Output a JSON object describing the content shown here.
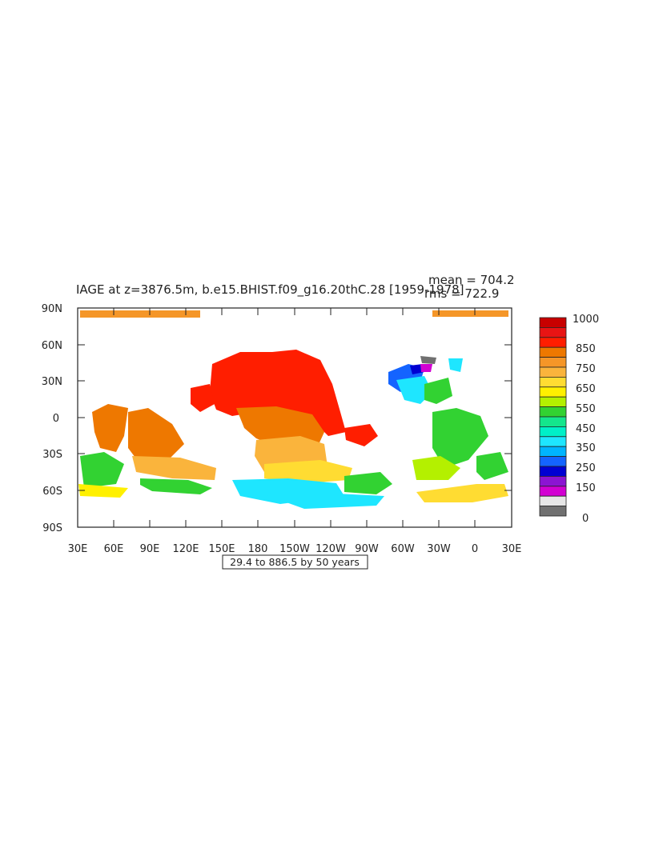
{
  "title": "IAGE at z=3876.5m, b.e15.BHIST.f09_g16.20thC.28  [1959-1978]",
  "stats": {
    "mean": "mean = 704.2",
    "rms": "rms = 722.9"
  },
  "contour_info": "29.4 to 886.5 by 50 years",
  "y_ticks": [
    "90N",
    "60N",
    "30N",
    "0",
    "30S",
    "60S",
    "90S"
  ],
  "x_ticks": [
    "30E",
    "60E",
    "90E",
    "120E",
    "150E",
    "180",
    "150W",
    "120W",
    "90W",
    "60W",
    "30W",
    "0",
    "30E"
  ],
  "colorbar": {
    "labels": [
      "1000",
      "850",
      "750",
      "650",
      "550",
      "450",
      "350",
      "250",
      "150",
      "0"
    ],
    "colors": [
      "#c80000",
      "#e81414",
      "#ff1e00",
      "#ee7800",
      "#f59628",
      "#fab43c",
      "#ffdc32",
      "#fff000",
      "#b4f000",
      "#32d232",
      "#14e68c",
      "#00f0c8",
      "#1ee6ff",
      "#00b4ff",
      "#1464ff",
      "#0000d2",
      "#8c14d2",
      "#d200d2",
      "#e6e6e6",
      "#707070"
    ]
  }
}
